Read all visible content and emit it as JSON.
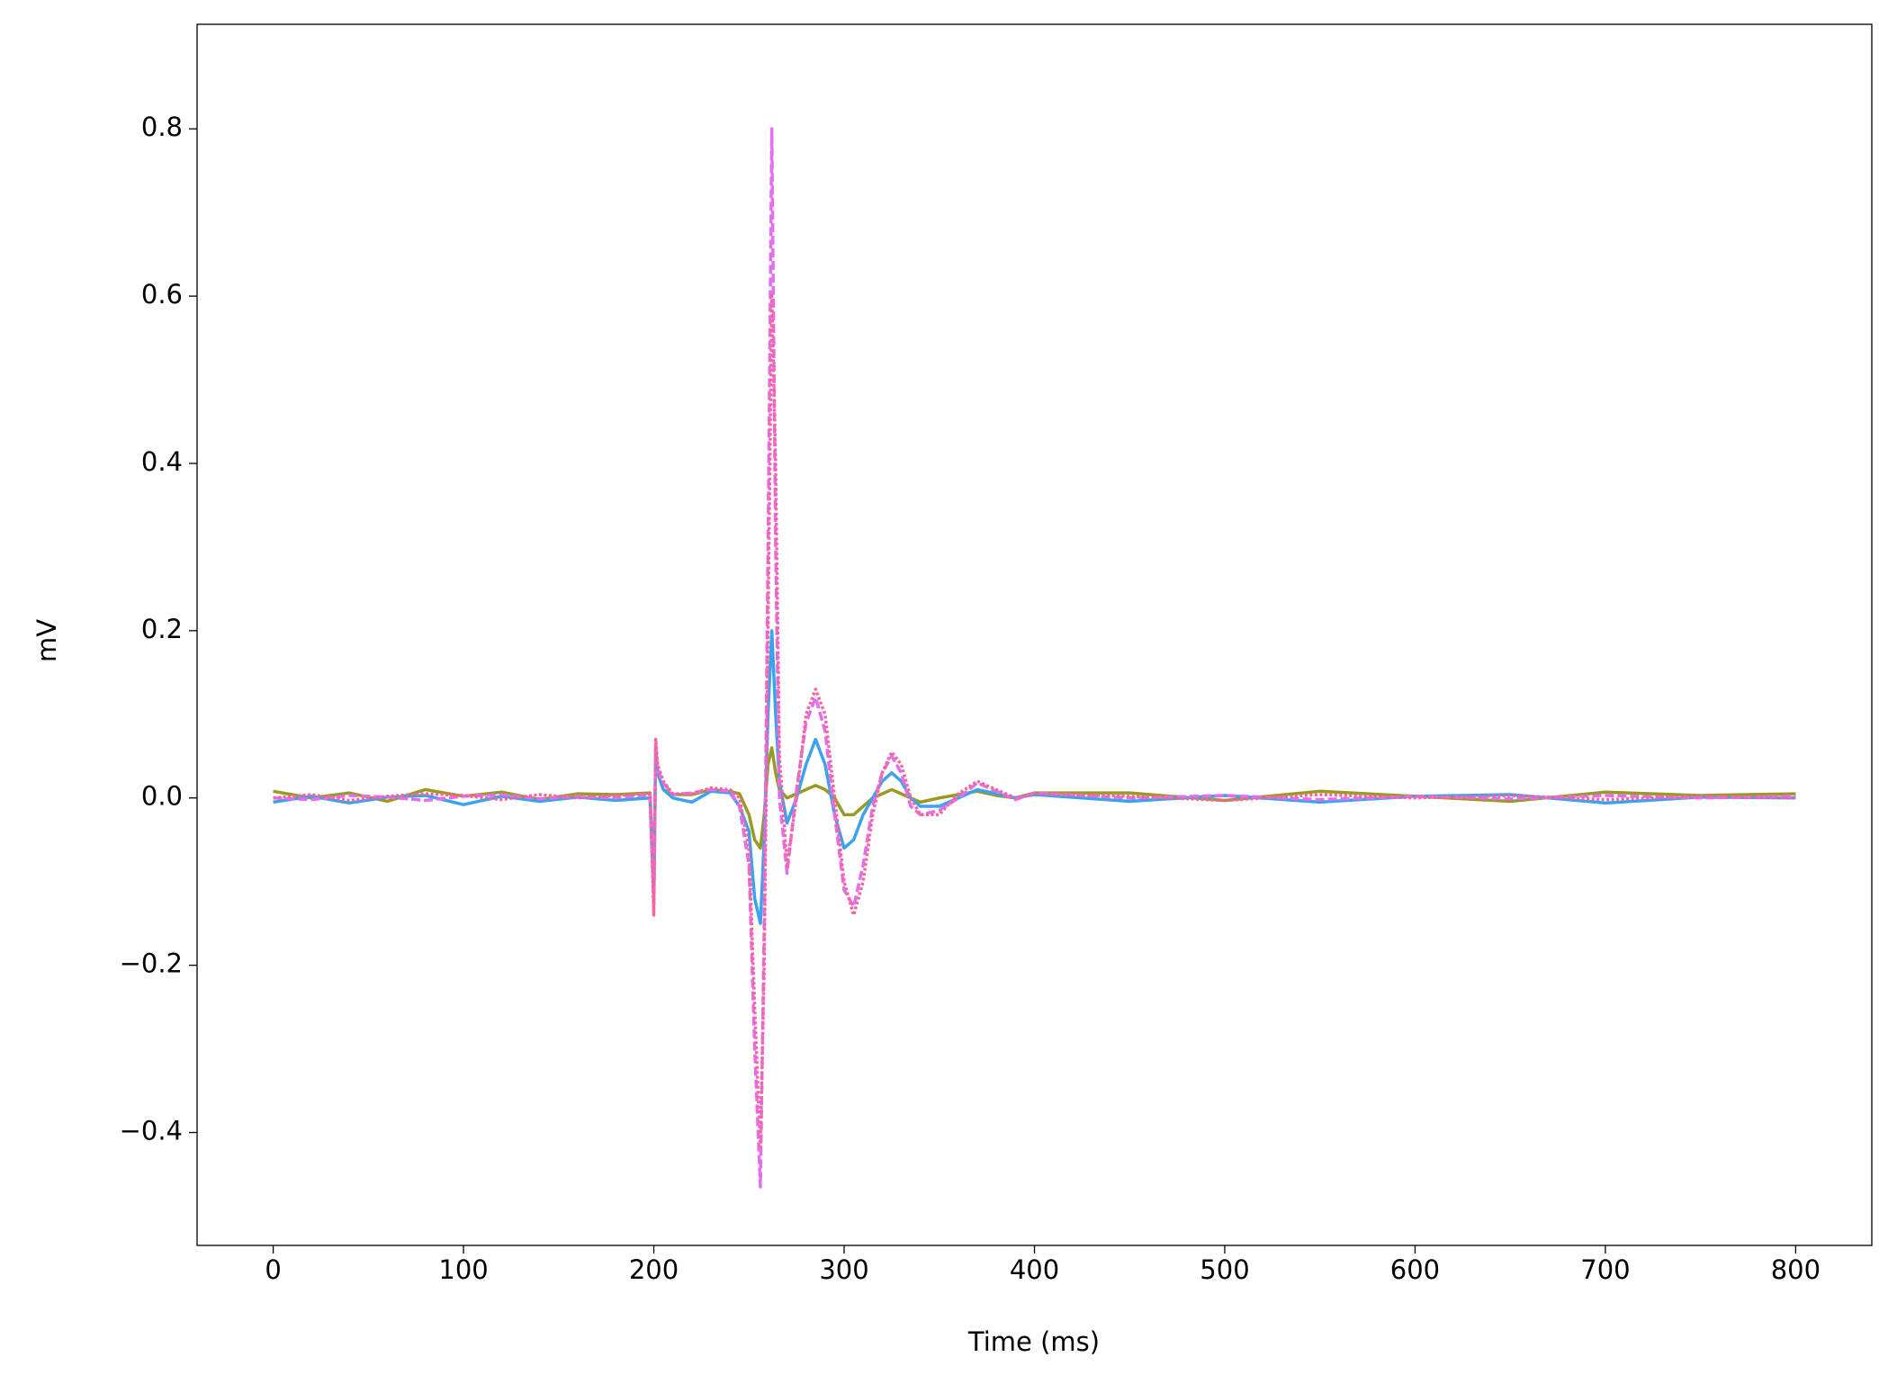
{
  "chart_data": {
    "type": "line",
    "xlabel": "Time (ms)",
    "ylabel": "mV",
    "x": [
      0,
      20,
      40,
      60,
      80,
      100,
      120,
      140,
      160,
      180,
      198,
      200,
      201,
      202,
      205,
      210,
      220,
      230,
      240,
      245,
      250,
      253,
      256,
      258,
      260,
      262,
      264,
      266,
      270,
      275,
      280,
      285,
      290,
      295,
      300,
      305,
      310,
      315,
      320,
      325,
      330,
      335,
      340,
      350,
      360,
      370,
      380,
      390,
      400,
      450,
      500,
      550,
      600,
      650,
      700,
      750,
      800
    ],
    "series": [
      {
        "color": "#9a9a22",
        "linestyle": "solid",
        "values": [
          0.008,
          0.0,
          0.006,
          -0.004,
          0.01,
          0.002,
          0.007,
          -0.002,
          0.005,
          0.004,
          0.006,
          -0.1,
          0.05,
          0.03,
          0.01,
          0.004,
          0.004,
          0.01,
          0.008,
          0.005,
          -0.02,
          -0.05,
          -0.06,
          -0.02,
          0.04,
          0.06,
          0.03,
          0.01,
          0.0,
          0.005,
          0.01,
          0.015,
          0.01,
          0.0,
          -0.02,
          -0.02,
          -0.01,
          0.0,
          0.005,
          0.01,
          0.005,
          0.0,
          -0.005,
          0.0,
          0.004,
          0.008,
          0.003,
          0.0,
          0.006,
          0.006,
          -0.003,
          0.008,
          0.002,
          -0.004,
          0.007,
          0.003,
          0.005
        ]
      },
      {
        "color": "#3ba3ec",
        "linestyle": "solid",
        "values": [
          -0.005,
          0.002,
          -0.006,
          0.001,
          0.003,
          -0.008,
          0.002,
          -0.004,
          0.001,
          -0.003,
          0.0,
          -0.12,
          0.06,
          0.03,
          0.01,
          0.0,
          -0.005,
          0.008,
          0.006,
          -0.01,
          -0.04,
          -0.12,
          -0.15,
          -0.05,
          0.1,
          0.2,
          0.1,
          0.02,
          -0.03,
          0.0,
          0.04,
          0.07,
          0.04,
          -0.02,
          -0.06,
          -0.05,
          -0.02,
          0.0,
          0.02,
          0.03,
          0.02,
          0.0,
          -0.01,
          -0.01,
          0.0,
          0.01,
          0.005,
          0.0,
          0.004,
          -0.004,
          0.003,
          -0.005,
          0.002,
          0.004,
          -0.006,
          0.001,
          0.0
        ]
      },
      {
        "color": "#e36ef0",
        "linestyle": "dashed",
        "values": [
          0.0,
          -0.002,
          0.003,
          0.001,
          -0.003,
          0.002,
          0.004,
          -0.001,
          0.002,
          0.0,
          0.004,
          -0.13,
          0.065,
          0.035,
          0.018,
          0.004,
          0.006,
          0.01,
          0.008,
          -0.01,
          -0.08,
          -0.3,
          -0.465,
          -0.15,
          0.3,
          0.8,
          0.3,
          0.0,
          -0.09,
          0.01,
          0.09,
          0.12,
          0.08,
          -0.02,
          -0.11,
          -0.13,
          -0.08,
          -0.01,
          0.03,
          0.05,
          0.03,
          -0.01,
          -0.02,
          -0.015,
          0.0,
          0.018,
          0.008,
          -0.002,
          0.006,
          0.0,
          0.003,
          -0.002,
          0.002,
          -0.001,
          0.003,
          0.0,
          0.002
        ]
      },
      {
        "color": "#f8659c",
        "linestyle": "dotted",
        "values": [
          0.0,
          0.004,
          -0.003,
          0.002,
          0.005,
          0.003,
          -0.002,
          0.004,
          0.0,
          0.003,
          0.005,
          -0.14,
          0.07,
          0.04,
          0.02,
          0.005,
          0.005,
          0.012,
          0.01,
          0.0,
          -0.06,
          -0.25,
          -0.42,
          -0.2,
          0.2,
          0.6,
          0.4,
          0.05,
          -0.08,
          0.0,
          0.1,
          0.13,
          0.1,
          0.0,
          -0.1,
          -0.14,
          -0.1,
          -0.02,
          0.03,
          0.055,
          0.04,
          0.0,
          -0.02,
          -0.02,
          0.005,
          0.02,
          0.01,
          0.0,
          0.005,
          0.002,
          -0.003,
          0.004,
          0.0,
          0.003,
          -0.002,
          0.002,
          0.0
        ]
      }
    ],
    "xlim": [
      -40,
      840
    ],
    "xticks": [
      0,
      100,
      200,
      300,
      400,
      500,
      600,
      700,
      800
    ],
    "ylim": [
      -0.535,
      0.925
    ],
    "yticks": [
      {
        "value": -0.4,
        "label": "−0.4"
      },
      {
        "value": -0.2,
        "label": "−0.2"
      },
      {
        "value": 0,
        "label": "0.0"
      },
      0.2,
      0.4,
      0.6,
      0.8
    ],
    "grid": false
  }
}
